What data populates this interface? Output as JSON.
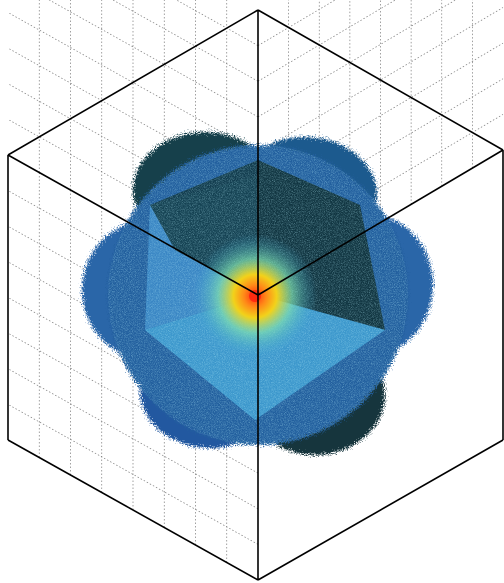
{
  "figure": {
    "description_type": "3d-volume-render-in-box",
    "colors": {
      "background": "#ffffff",
      "frame": "#000000",
      "grid": "#7a7a7a",
      "volume_dark": "#0f3640",
      "volume_mid": "#1f5fa0",
      "volume_light": "#3fa6d6",
      "volume_highlight": "#7fe0b0",
      "core_hot": "#ff3b1f",
      "core_warm": "#f2c21a"
    }
  }
}
